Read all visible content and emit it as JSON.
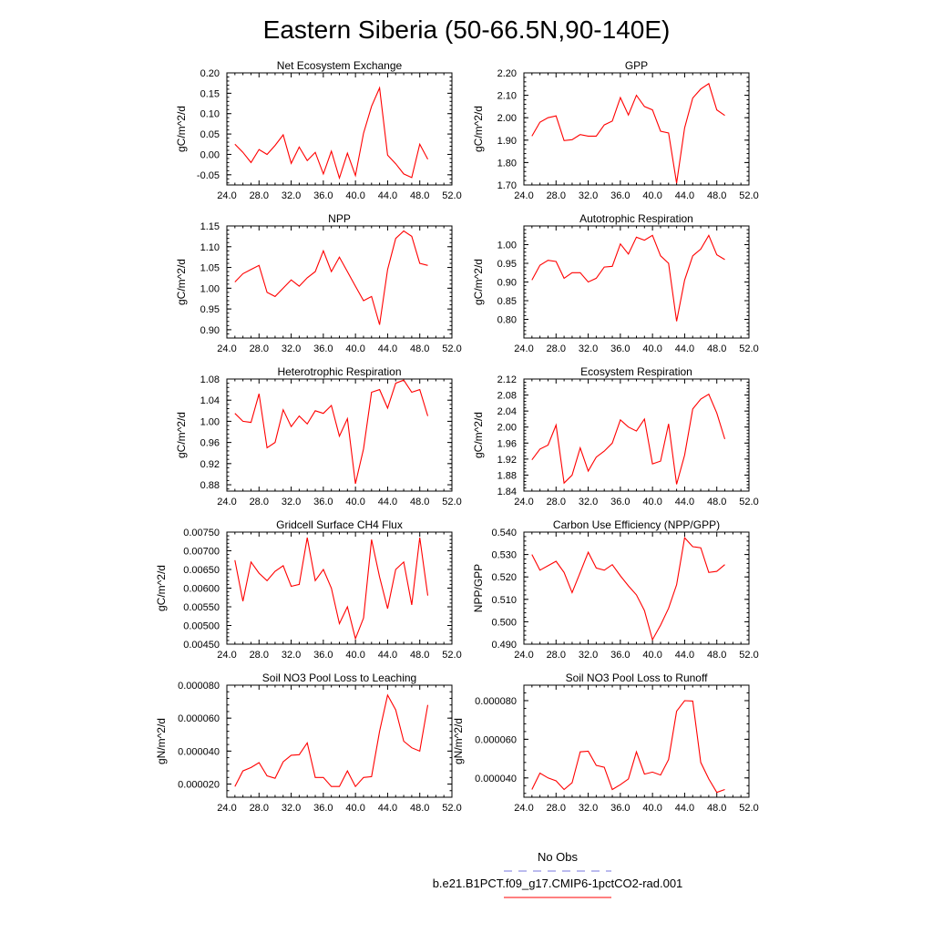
{
  "figure": {
    "title": "Eastern Siberia (50-66.5N,90-140E)"
  },
  "legend": {
    "items": [
      {
        "label": "No Obs",
        "color": "#7777dd",
        "style": "dashed"
      },
      {
        "label": "b.e21.B1PCT.f09_g17.CMIP6-1pctCO2-rad.001",
        "color": "#ff0000",
        "style": "solid"
      }
    ]
  },
  "chart_data": [
    {
      "type": "line",
      "title": "Net Ecosystem Exchange",
      "xlabel": "",
      "ylabel": "gC/m^2/d",
      "xlim": [
        24,
        52
      ],
      "ylim": [
        -0.075,
        0.2
      ],
      "xticks": [
        24,
        28,
        32,
        36,
        40,
        44,
        48,
        52
      ],
      "xtick_labels": [
        "24.0",
        "28.0",
        "32.0",
        "36.0",
        "40.0",
        "44.0",
        "48.0",
        "52.0"
      ],
      "yticks": [
        -0.05,
        0,
        0.05,
        0.1,
        0.15,
        0.2
      ],
      "ytick_labels": [
        "-0.05",
        "0.00",
        "0.05",
        "0.10",
        "0.15",
        "0.20"
      ],
      "series": [
        {
          "color": "#ff0000",
          "x": [
            25,
            26,
            27,
            28,
            29,
            30,
            31,
            32,
            33,
            34,
            35,
            36,
            37,
            38,
            39,
            40,
            41,
            42,
            43,
            44,
            45,
            46,
            47,
            48,
            49
          ],
          "y": [
            0.025,
            0.005,
            -0.02,
            0.012,
            0.0,
            0.022,
            0.048,
            -0.022,
            0.018,
            -0.015,
            0.005,
            -0.048,
            0.008,
            -0.058,
            0.003,
            -0.052,
            0.052,
            0.118,
            0.163,
            -0.002,
            -0.023,
            -0.048,
            -0.057,
            0.025,
            -0.012
          ]
        }
      ]
    },
    {
      "type": "line",
      "title": "GPP",
      "xlabel": "",
      "ylabel": "gC/m^2/d",
      "xlim": [
        24,
        52
      ],
      "ylim": [
        1.7,
        2.2
      ],
      "xticks": [
        24,
        28,
        32,
        36,
        40,
        44,
        48,
        52
      ],
      "xtick_labels": [
        "24.0",
        "28.0",
        "32.0",
        "36.0",
        "40.0",
        "44.0",
        "48.0",
        "52.0"
      ],
      "yticks": [
        1.7,
        1.8,
        1.9,
        2.0,
        2.1,
        2.2
      ],
      "ytick_labels": [
        "1.70",
        "1.80",
        "1.90",
        "2.00",
        "2.10",
        "2.20"
      ],
      "series": [
        {
          "color": "#ff0000",
          "x": [
            25,
            26,
            27,
            28,
            29,
            30,
            31,
            32,
            33,
            34,
            35,
            36,
            37,
            38,
            39,
            40,
            41,
            42,
            43,
            44,
            45,
            46,
            47,
            48,
            49
          ],
          "y": [
            1.918,
            1.98,
            2.0,
            2.008,
            1.898,
            1.902,
            1.925,
            1.918,
            1.918,
            1.968,
            1.985,
            2.09,
            2.012,
            2.1,
            2.05,
            2.035,
            1.94,
            1.932,
            1.708,
            1.955,
            2.088,
            2.128,
            2.152,
            2.035,
            2.01
          ]
        }
      ]
    },
    {
      "type": "line",
      "title": "NPP",
      "xlabel": "",
      "ylabel": "gC/m^2/d",
      "xlim": [
        24,
        52
      ],
      "ylim": [
        0.88,
        1.15
      ],
      "xticks": [
        24,
        28,
        32,
        36,
        40,
        44,
        48,
        52
      ],
      "xtick_labels": [
        "24.0",
        "28.0",
        "32.0",
        "36.0",
        "40.0",
        "44.0",
        "48.0",
        "52.0"
      ],
      "yticks": [
        0.9,
        0.95,
        1.0,
        1.05,
        1.1,
        1.15
      ],
      "ytick_labels": [
        "0.90",
        "0.95",
        "1.00",
        "1.05",
        "1.10",
        "1.15"
      ],
      "series": [
        {
          "color": "#ff0000",
          "x": [
            25,
            26,
            27,
            28,
            29,
            30,
            31,
            32,
            33,
            34,
            35,
            36,
            37,
            38,
            39,
            40,
            41,
            42,
            43,
            44,
            45,
            46,
            47,
            48,
            49
          ],
          "y": [
            1.015,
            1.035,
            1.045,
            1.055,
            0.99,
            0.98,
            1.0,
            1.02,
            1.005,
            1.025,
            1.04,
            1.09,
            1.04,
            1.075,
            1.04,
            1.005,
            0.97,
            0.98,
            0.912,
            1.045,
            1.12,
            1.138,
            1.125,
            1.06,
            1.055
          ]
        }
      ]
    },
    {
      "type": "line",
      "title": "Autotrophic Respiration",
      "xlabel": "",
      "ylabel": "gC/m^2/d",
      "xlim": [
        24,
        52
      ],
      "ylim": [
        0.75,
        1.05
      ],
      "xticks": [
        24,
        28,
        32,
        36,
        40,
        44,
        48,
        52
      ],
      "xtick_labels": [
        "24.0",
        "28.0",
        "32.0",
        "36.0",
        "40.0",
        "44.0",
        "48.0",
        "52.0"
      ],
      "yticks": [
        0.8,
        0.85,
        0.9,
        0.95,
        1.0
      ],
      "ytick_labels": [
        "0.80",
        "0.85",
        "0.90",
        "0.95",
        "1.00"
      ],
      "series": [
        {
          "color": "#ff0000",
          "x": [
            25,
            26,
            27,
            28,
            29,
            30,
            31,
            32,
            33,
            34,
            35,
            36,
            37,
            38,
            39,
            40,
            41,
            42,
            43,
            44,
            45,
            46,
            47,
            48,
            49
          ],
          "y": [
            0.905,
            0.945,
            0.958,
            0.955,
            0.91,
            0.925,
            0.925,
            0.9,
            0.91,
            0.94,
            0.942,
            1.002,
            0.975,
            1.02,
            1.012,
            1.025,
            0.97,
            0.95,
            0.795,
            0.905,
            0.97,
            0.988,
            1.025,
            0.973,
            0.96
          ]
        }
      ]
    },
    {
      "type": "line",
      "title": "Heterotrophic Respiration",
      "xlabel": "",
      "ylabel": "gC/m^2/d",
      "xlim": [
        24,
        52
      ],
      "ylim": [
        0.868,
        1.08
      ],
      "xticks": [
        24,
        28,
        32,
        36,
        40,
        44,
        48,
        52
      ],
      "xtick_labels": [
        "24.0",
        "28.0",
        "32.0",
        "36.0",
        "40.0",
        "44.0",
        "48.0",
        "52.0"
      ],
      "yticks": [
        0.88,
        0.92,
        0.96,
        1.0,
        1.04,
        1.08
      ],
      "ytick_labels": [
        "0.88",
        "0.92",
        "0.96",
        "1.00",
        "1.04",
        "1.08"
      ],
      "series": [
        {
          "color": "#ff0000",
          "x": [
            25,
            26,
            27,
            28,
            29,
            30,
            31,
            32,
            33,
            34,
            35,
            36,
            37,
            38,
            39,
            40,
            41,
            42,
            43,
            44,
            45,
            46,
            47,
            48,
            49
          ],
          "y": [
            1.015,
            1.0,
            0.998,
            1.052,
            0.95,
            0.96,
            1.022,
            0.99,
            1.01,
            0.995,
            1.02,
            1.015,
            1.03,
            0.972,
            1.005,
            0.882,
            0.948,
            1.055,
            1.06,
            1.025,
            1.072,
            1.078,
            1.055,
            1.06,
            1.01
          ]
        }
      ]
    },
    {
      "type": "line",
      "title": "Ecosystem Respiration",
      "xlabel": "",
      "ylabel": "gC/m^2/d",
      "xlim": [
        24,
        52
      ],
      "ylim": [
        1.84,
        2.12
      ],
      "xticks": [
        24,
        28,
        32,
        36,
        40,
        44,
        48,
        52
      ],
      "xtick_labels": [
        "24.0",
        "28.0",
        "32.0",
        "36.0",
        "40.0",
        "44.0",
        "48.0",
        "52.0"
      ],
      "yticks": [
        1.84,
        1.88,
        1.92,
        1.96,
        2.0,
        2.04,
        2.08,
        2.12
      ],
      "ytick_labels": [
        "1.84",
        "1.88",
        "1.92",
        "1.96",
        "2.00",
        "2.04",
        "2.08",
        "2.12"
      ],
      "series": [
        {
          "color": "#ff0000",
          "x": [
            25,
            26,
            27,
            28,
            29,
            30,
            31,
            32,
            33,
            34,
            35,
            36,
            37,
            38,
            39,
            40,
            41,
            42,
            43,
            44,
            45,
            46,
            47,
            48,
            49
          ],
          "y": [
            1.918,
            1.945,
            1.955,
            2.005,
            1.86,
            1.88,
            1.948,
            1.89,
            1.925,
            1.94,
            1.96,
            2.018,
            2.0,
            1.99,
            2.02,
            1.908,
            1.915,
            2.008,
            1.857,
            1.93,
            2.045,
            2.07,
            2.082,
            2.035,
            1.97
          ]
        }
      ]
    },
    {
      "type": "line",
      "title": "Gridcell Surface CH4 Flux",
      "xlabel": "",
      "ylabel": "gC/m^2/d",
      "xlim": [
        24,
        52
      ],
      "ylim": [
        0.0045,
        0.0075
      ],
      "xticks": [
        24,
        28,
        32,
        36,
        40,
        44,
        48,
        52
      ],
      "xtick_labels": [
        "24.0",
        "28.0",
        "32.0",
        "36.0",
        "40.0",
        "44.0",
        "48.0",
        "52.0"
      ],
      "yticks": [
        0.0045,
        0.005,
        0.0055,
        0.006,
        0.0065,
        0.007,
        0.0075
      ],
      "ytick_labels": [
        "0.00450",
        "0.00500",
        "0.00550",
        "0.00600",
        "0.00650",
        "0.00700",
        "0.00750"
      ],
      "series": [
        {
          "color": "#ff0000",
          "x": [
            25,
            26,
            27,
            28,
            29,
            30,
            31,
            32,
            33,
            34,
            35,
            36,
            37,
            38,
            39,
            40,
            41,
            42,
            43,
            44,
            45,
            46,
            47,
            48,
            49
          ],
          "y": [
            0.00675,
            0.00565,
            0.0067,
            0.0064,
            0.0062,
            0.00645,
            0.0066,
            0.00605,
            0.0061,
            0.00735,
            0.0062,
            0.0065,
            0.006,
            0.00505,
            0.0055,
            0.00465,
            0.0052,
            0.0073,
            0.0063,
            0.00545,
            0.0065,
            0.0067,
            0.00555,
            0.00735,
            0.0058
          ]
        }
      ]
    },
    {
      "type": "line",
      "title": "Carbon Use Efficiency (NPP/GPP)",
      "xlabel": "",
      "ylabel": "NPP/GPP",
      "xlim": [
        24,
        52
      ],
      "ylim": [
        0.49,
        0.54
      ],
      "xticks": [
        24,
        28,
        32,
        36,
        40,
        44,
        48,
        52
      ],
      "xtick_labels": [
        "24.0",
        "28.0",
        "32.0",
        "36.0",
        "40.0",
        "44.0",
        "48.0",
        "52.0"
      ],
      "yticks": [
        0.49,
        0.5,
        0.51,
        0.52,
        0.53,
        0.54
      ],
      "ytick_labels": [
        "0.490",
        "0.500",
        "0.510",
        "0.520",
        "0.530",
        "0.540"
      ],
      "series": [
        {
          "color": "#ff0000",
          "x": [
            25,
            26,
            27,
            28,
            29,
            30,
            31,
            32,
            33,
            34,
            35,
            36,
            37,
            38,
            39,
            40,
            41,
            42,
            43,
            44,
            45,
            46,
            47,
            48,
            49
          ],
          "y": [
            0.53,
            0.523,
            0.525,
            0.527,
            0.522,
            0.513,
            0.522,
            0.531,
            0.524,
            0.523,
            0.5255,
            0.5205,
            0.516,
            0.512,
            0.505,
            0.492,
            0.4985,
            0.506,
            0.5165,
            0.5375,
            0.5335,
            0.533,
            0.522,
            0.5225,
            0.5255
          ]
        }
      ]
    },
    {
      "type": "line",
      "title": "Soil NO3 Pool Loss to Leaching",
      "xlabel": "",
      "ylabel": "gN/m^2/d",
      "xlim": [
        24,
        52
      ],
      "ylim": [
        1.2e-05,
        8e-05
      ],
      "xticks": [
        24,
        28,
        32,
        36,
        40,
        44,
        48,
        52
      ],
      "xtick_labels": [
        "24.0",
        "28.0",
        "32.0",
        "36.0",
        "40.0",
        "44.0",
        "48.0",
        "52.0"
      ],
      "yticks": [
        2e-05,
        4e-05,
        6e-05,
        8e-05
      ],
      "ytick_labels": [
        "0.000020",
        "0.000040",
        "0.000060",
        "0.000080"
      ],
      "series": [
        {
          "color": "#ff0000",
          "x": [
            25,
            26,
            27,
            28,
            29,
            30,
            31,
            32,
            33,
            34,
            35,
            36,
            37,
            38,
            39,
            40,
            41,
            42,
            43,
            44,
            45,
            46,
            47,
            48,
            49
          ],
          "y": [
            1.85e-05,
            2.8e-05,
            3e-05,
            3.3e-05,
            2.5e-05,
            2.35e-05,
            3.35e-05,
            3.75e-05,
            3.78e-05,
            4.5e-05,
            2.4e-05,
            2.4e-05,
            1.85e-05,
            1.85e-05,
            2.8e-05,
            1.85e-05,
            2.4e-05,
            2.45e-05,
            5.2e-05,
            7.4e-05,
            6.5e-05,
            4.6e-05,
            4.2e-05,
            4e-05,
            6.8e-05
          ]
        }
      ]
    },
    {
      "type": "line",
      "title": "Soil NO3 Pool Loss to Runoff",
      "xlabel": "",
      "ylabel": "gN/m^2/d",
      "xlim": [
        24,
        52
      ],
      "ylim": [
        3e-05,
        8.8e-05
      ],
      "xticks": [
        24,
        28,
        32,
        36,
        40,
        44,
        48,
        52
      ],
      "xtick_labels": [
        "24.0",
        "28.0",
        "32.0",
        "36.0",
        "40.0",
        "44.0",
        "48.0",
        "52.0"
      ],
      "yticks": [
        4e-05,
        6e-05,
        8e-05
      ],
      "ytick_labels": [
        "0.000040",
        "0.000060",
        "0.000080"
      ],
      "series": [
        {
          "color": "#ff0000",
          "x": [
            25,
            26,
            27,
            28,
            29,
            30,
            31,
            32,
            33,
            34,
            35,
            36,
            37,
            38,
            39,
            40,
            41,
            42,
            43,
            44,
            45,
            46,
            47,
            48,
            49
          ],
          "y": [
            3.4e-05,
            4.25e-05,
            4e-05,
            3.85e-05,
            3.4e-05,
            3.75e-05,
            5.35e-05,
            5.38e-05,
            4.65e-05,
            4.55e-05,
            3.4e-05,
            3.65e-05,
            3.95e-05,
            5.35e-05,
            4.2e-05,
            4.3e-05,
            4.15e-05,
            4.95e-05,
            7.45e-05,
            8e-05,
            7.98e-05,
            4.8e-05,
            3.95e-05,
            3.25e-05,
            3.4e-05
          ]
        }
      ]
    }
  ]
}
